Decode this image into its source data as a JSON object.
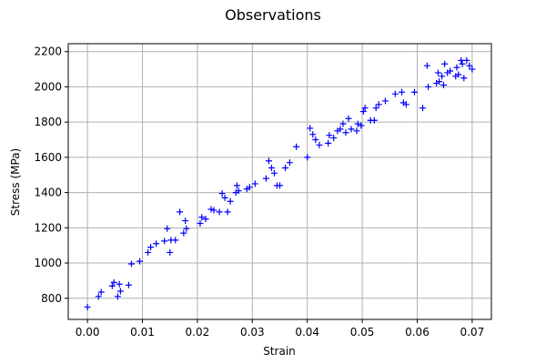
{
  "chart_data": {
    "type": "scatter",
    "title": "Observations",
    "xlabel": "Strain",
    "ylabel": "Stress (MPa)",
    "xlim": [
      -0.0035,
      0.0735
    ],
    "ylim": [
      680,
      2245
    ],
    "xticks": [
      0.0,
      0.01,
      0.02,
      0.03,
      0.04,
      0.05,
      0.06,
      0.07
    ],
    "xtick_labels": [
      "0.00",
      "0.01",
      "0.02",
      "0.03",
      "0.04",
      "0.05",
      "0.06",
      "0.07"
    ],
    "yticks": [
      800,
      1000,
      1200,
      1400,
      1600,
      1800,
      2000,
      2200
    ],
    "ytick_labels": [
      "800",
      "1000",
      "1200",
      "1400",
      "1600",
      "1800",
      "2000",
      "2200"
    ],
    "grid": true,
    "marker": "+",
    "color": "#0000ff",
    "points": [
      [
        0.0,
        750
      ],
      [
        0.002,
        810
      ],
      [
        0.0025,
        835
      ],
      [
        0.0045,
        870
      ],
      [
        0.0048,
        890
      ],
      [
        0.0055,
        810
      ],
      [
        0.0058,
        880
      ],
      [
        0.006,
        840
      ],
      [
        0.0075,
        875
      ],
      [
        0.008,
        995
      ],
      [
        0.0095,
        1010
      ],
      [
        0.011,
        1060
      ],
      [
        0.0115,
        1090
      ],
      [
        0.0125,
        1110
      ],
      [
        0.014,
        1125
      ],
      [
        0.0145,
        1195
      ],
      [
        0.015,
        1060
      ],
      [
        0.0152,
        1130
      ],
      [
        0.016,
        1130
      ],
      [
        0.0168,
        1290
      ],
      [
        0.0175,
        1170
      ],
      [
        0.0178,
        1240
      ],
      [
        0.018,
        1195
      ],
      [
        0.0205,
        1225
      ],
      [
        0.0208,
        1260
      ],
      [
        0.0215,
        1250
      ],
      [
        0.0225,
        1305
      ],
      [
        0.023,
        1300
      ],
      [
        0.024,
        1290
      ],
      [
        0.0245,
        1395
      ],
      [
        0.025,
        1370
      ],
      [
        0.0255,
        1290
      ],
      [
        0.026,
        1350
      ],
      [
        0.027,
        1400
      ],
      [
        0.0272,
        1440
      ],
      [
        0.0275,
        1410
      ],
      [
        0.029,
        1420
      ],
      [
        0.0295,
        1430
      ],
      [
        0.0305,
        1450
      ],
      [
        0.0325,
        1480
      ],
      [
        0.033,
        1580
      ],
      [
        0.0335,
        1540
      ],
      [
        0.034,
        1510
      ],
      [
        0.0345,
        1440
      ],
      [
        0.035,
        1440
      ],
      [
        0.036,
        1540
      ],
      [
        0.0368,
        1570
      ],
      [
        0.038,
        1660
      ],
      [
        0.04,
        1600
      ],
      [
        0.0405,
        1765
      ],
      [
        0.041,
        1730
      ],
      [
        0.0415,
        1700
      ],
      [
        0.0422,
        1670
      ],
      [
        0.0438,
        1680
      ],
      [
        0.044,
        1725
      ],
      [
        0.0448,
        1710
      ],
      [
        0.0455,
        1750
      ],
      [
        0.046,
        1760
      ],
      [
        0.0465,
        1790
      ],
      [
        0.047,
        1740
      ],
      [
        0.0475,
        1820
      ],
      [
        0.048,
        1760
      ],
      [
        0.049,
        1750
      ],
      [
        0.0492,
        1790
      ],
      [
        0.0498,
        1780
      ],
      [
        0.0502,
        1860
      ],
      [
        0.0505,
        1880
      ],
      [
        0.0515,
        1810
      ],
      [
        0.0522,
        1810
      ],
      [
        0.0525,
        1880
      ],
      [
        0.053,
        1900
      ],
      [
        0.0542,
        1920
      ],
      [
        0.056,
        1960
      ],
      [
        0.0572,
        1970
      ],
      [
        0.0575,
        1910
      ],
      [
        0.058,
        1900
      ],
      [
        0.0595,
        1970
      ],
      [
        0.061,
        1880
      ],
      [
        0.0618,
        2120
      ],
      [
        0.062,
        2000
      ],
      [
        0.0635,
        2020
      ],
      [
        0.0638,
        2080
      ],
      [
        0.064,
        2030
      ],
      [
        0.0645,
        2060
      ],
      [
        0.0648,
        2010
      ],
      [
        0.065,
        2130
      ],
      [
        0.0655,
        2080
      ],
      [
        0.066,
        2090
      ],
      [
        0.067,
        2060
      ],
      [
        0.0672,
        2110
      ],
      [
        0.0675,
        2070
      ],
      [
        0.068,
        2150
      ],
      [
        0.0682,
        2130
      ],
      [
        0.0685,
        2050
      ],
      [
        0.069,
        2150
      ],
      [
        0.0695,
        2120
      ],
      [
        0.07,
        2100
      ]
    ]
  }
}
